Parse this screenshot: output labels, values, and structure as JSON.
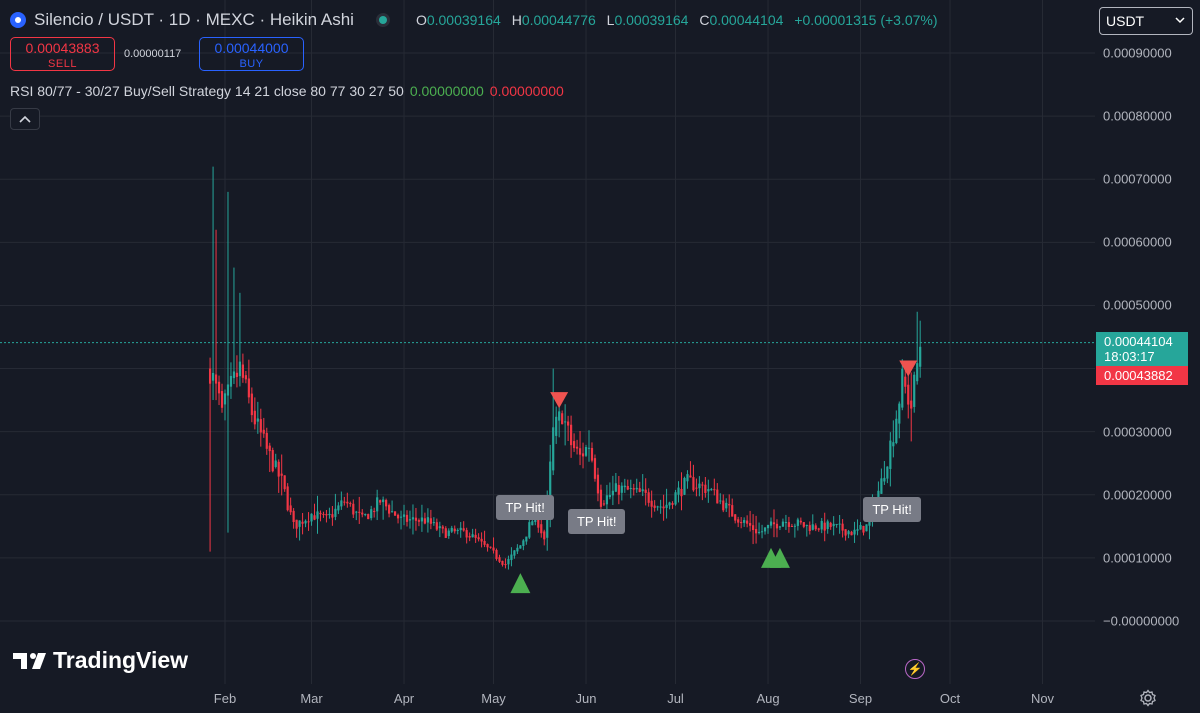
{
  "header": {
    "title": "Silencio / USDT · 1D · MEXC · Heikin Ashi",
    "ohlc": {
      "o_label": "O",
      "o": "0.00039164",
      "h_label": "H",
      "h": "0.00044776",
      "l_label": "L",
      "l": "0.00039164",
      "c_label": "C",
      "c": "0.00044104",
      "change": "+0.00001315 (+3.07%)"
    }
  },
  "trade": {
    "sell_price": "0.00043883",
    "sell_label": "SELL",
    "spread": "0.00000117",
    "buy_price": "0.00044000",
    "buy_label": "BUY"
  },
  "indicator": {
    "label": "RSI 80/77 - 30/27 Buy/Sell Strategy 14 21 close 80 77 30 27 50",
    "value1": "0.00000000",
    "value2": "0.00000000"
  },
  "currency_select": {
    "value": "USDT"
  },
  "price_axis": {
    "labels": [
      "0.00090000",
      "0.00080000",
      "0.00070000",
      "0.00060000",
      "0.00050000",
      "0.00030000",
      "0.00020000",
      "0.00010000",
      "−0.00000000"
    ],
    "current_price": "0.00044104",
    "countdown": "18:03:17",
    "bid_price": "0.00043882"
  },
  "time_axis": {
    "labels": [
      "Feb",
      "Mar",
      "Apr",
      "May",
      "Jun",
      "Jul",
      "Aug",
      "Sep",
      "Oct",
      "Nov"
    ]
  },
  "annotations": {
    "tp1": "TP Hit!",
    "tp2": "TP Hit!",
    "tp3": "TP Hit!"
  },
  "brand": {
    "name": "TradingView"
  },
  "icons": {
    "logo": "silencio-logo-icon",
    "collapse": "chevron-up-icon",
    "select": "chevron-down-icon",
    "lightning": "lightning-icon",
    "settings": "gear-icon"
  },
  "colors": {
    "up": "#26a69a",
    "down": "#f23645",
    "background": "#161a25",
    "buy_signal": "#4caf50",
    "sell_signal": "#ef5350"
  },
  "chart_data": {
    "type": "candlestick",
    "style": "Heikin Ashi",
    "symbol": "Silencio / USDT",
    "interval": "1D",
    "exchange": "MEXC",
    "ylim": [
      -4e-05,
      0.00093
    ],
    "x_start": "2024-01-27",
    "x_end": "2024-11-20",
    "price_path": [
      [
        "2024-01-27",
        0.0004
      ],
      [
        "2024-01-31",
        0.00033
      ],
      [
        "2024-02-03",
        0.00037
      ],
      [
        "2024-02-06",
        0.0004
      ],
      [
        "2024-02-10",
        0.00033
      ],
      [
        "2024-02-15",
        0.00027
      ],
      [
        "2024-02-20",
        0.00022
      ],
      [
        "2024-02-24",
        0.00015
      ],
      [
        "2024-03-01",
        0.00017
      ],
      [
        "2024-03-06",
        0.00016
      ],
      [
        "2024-03-12",
        0.00019
      ],
      [
        "2024-03-18",
        0.00016
      ],
      [
        "2024-03-24",
        0.00019
      ],
      [
        "2024-03-31",
        0.00016
      ],
      [
        "2024-04-08",
        0.00016
      ],
      [
        "2024-04-14",
        0.00014
      ],
      [
        "2024-04-22",
        0.00014
      ],
      [
        "2024-04-30",
        0.00011
      ],
      [
        "2024-05-05",
        9e-05
      ],
      [
        "2024-05-10",
        0.00012
      ],
      [
        "2024-05-15",
        0.00017
      ],
      [
        "2024-05-18",
        0.00013
      ],
      [
        "2024-05-21",
        0.0003
      ],
      [
        "2024-05-24",
        0.00033
      ],
      [
        "2024-05-27",
        0.00028
      ],
      [
        "2024-05-30",
        0.00026
      ],
      [
        "2024-06-02",
        0.00028
      ],
      [
        "2024-06-06",
        0.00019
      ],
      [
        "2024-06-12",
        0.00021
      ],
      [
        "2024-06-20",
        0.0002
      ],
      [
        "2024-06-27",
        0.00018
      ],
      [
        "2024-07-05",
        0.00022
      ],
      [
        "2024-07-12",
        0.00021
      ],
      [
        "2024-07-20",
        0.00017
      ],
      [
        "2024-07-29",
        0.00014
      ],
      [
        "2024-08-06",
        0.00016
      ],
      [
        "2024-08-14",
        0.00015
      ],
      [
        "2024-08-22",
        0.00015
      ],
      [
        "2024-08-30",
        0.00014
      ],
      [
        "2024-09-03",
        0.00015
      ],
      [
        "2024-09-08",
        0.00022
      ],
      [
        "2024-09-12",
        0.0003
      ],
      [
        "2024-09-15",
        0.00038
      ],
      [
        "2024-09-18",
        0.00034
      ],
      [
        "2024-09-21",
        0.00044
      ]
    ],
    "tp_hit_dates": [
      "2024-05-12",
      "2024-06-05",
      "2024-09-12"
    ],
    "buy_signals": [
      {
        "date": "2024-05-10",
        "price": 6e-05
      },
      {
        "date": "2024-08-02",
        "price": 0.0001
      },
      {
        "date": "2024-08-05",
        "price": 0.0001
      }
    ],
    "sell_signals": [
      {
        "date": "2024-05-23",
        "price": 0.00035
      },
      {
        "date": "2024-09-17",
        "price": 0.0004
      }
    ],
    "current_price": 0.00044104
  }
}
